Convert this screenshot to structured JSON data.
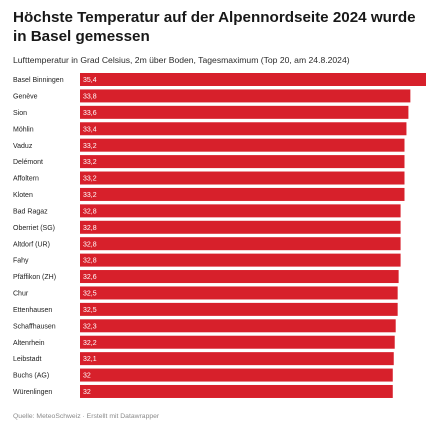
{
  "title": "Höchste Temperatur auf der Alpennordseite 2024 wurde in Basel gemessen",
  "subtitle": "Lufttemperatur in Grad Celsius, 2m über Boden, Tagesmaximum (Top 20, am 24.8.2024)",
  "source": "Quelle: MeteoSchweiz · Erstellt mit Datawrapper",
  "colors": {
    "bar": "#d7202b",
    "value_label": "#ffffff",
    "category_label": "#222222",
    "source": "#8a8a8a"
  },
  "chart_data": {
    "type": "bar",
    "orientation": "horizontal",
    "categories": [
      "Basel Binningen",
      "Genève",
      "Sion",
      "Möhlin",
      "Vaduz",
      "Delémont",
      "Affoltern",
      "Kloten",
      "Bad Ragaz",
      "Oberriet (SG)",
      "Altdorf (UR)",
      "Fahy",
      "Pfäffikon (ZH)",
      "Chur",
      "Ettenhausen",
      "Schaffhausen",
      "Altenrhein",
      "Leibstadt",
      "Buchs (AG)",
      "Würenlingen"
    ],
    "values": [
      35.4,
      33.8,
      33.6,
      33.4,
      33.2,
      33.2,
      33.2,
      33.2,
      32.8,
      32.8,
      32.8,
      32.8,
      32.6,
      32.5,
      32.5,
      32.3,
      32.2,
      32.1,
      32,
      32
    ],
    "value_labels": [
      "35,4",
      "33,8",
      "33,6",
      "33,4",
      "33,2",
      "33,2",
      "33,2",
      "33,2",
      "32,8",
      "32,8",
      "32,8",
      "32,8",
      "32,6",
      "32,5",
      "32,5",
      "32,3",
      "32,2",
      "32,1",
      "32",
      "32"
    ],
    "xlim": [
      0,
      35.4
    ],
    "grid": false,
    "legend": "none"
  }
}
